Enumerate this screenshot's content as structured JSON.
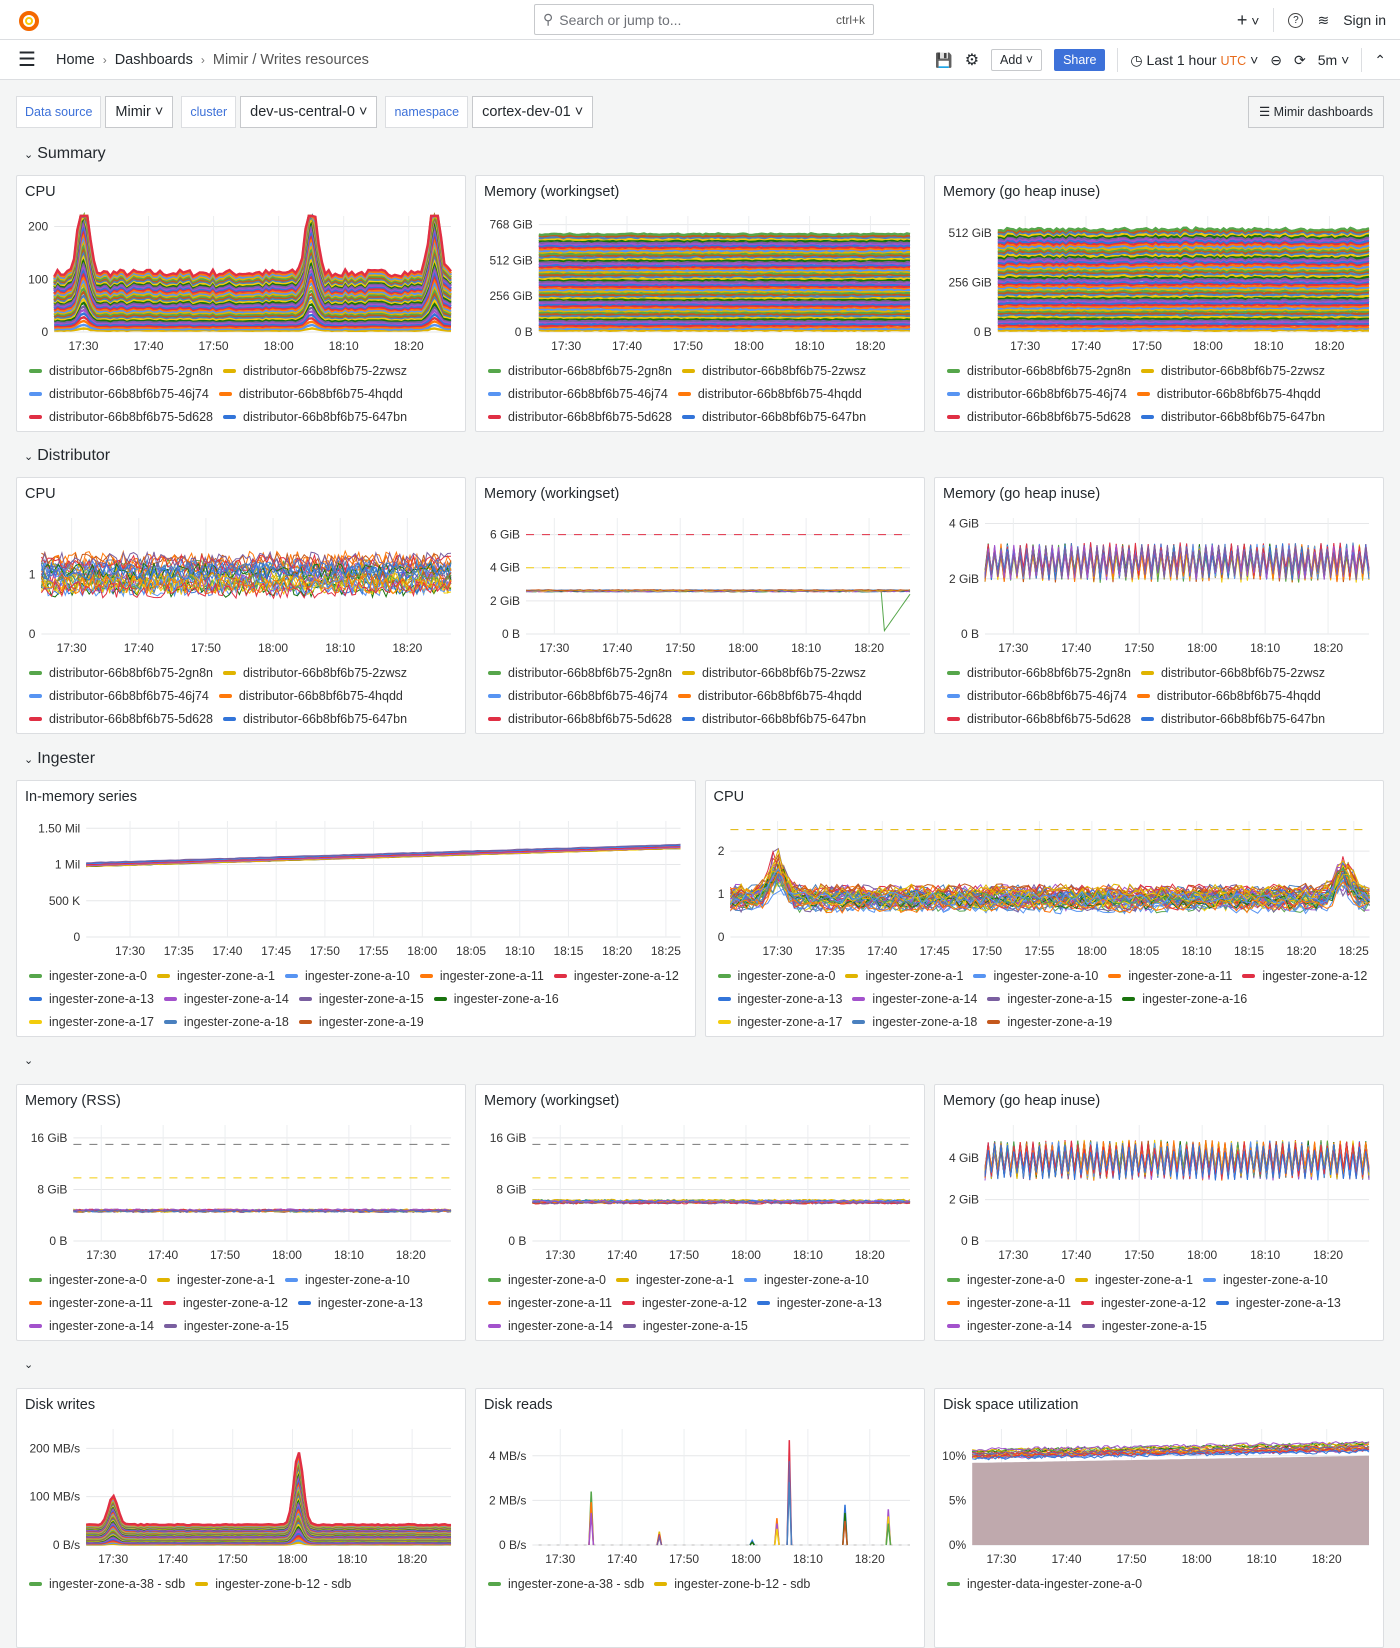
{
  "topbar": {
    "search_placeholder": "Search or jump to...",
    "shortcut": "ctrl+k",
    "new_label": "+",
    "help_icon": "help-icon",
    "news_icon": "rss-icon",
    "sign_in": "Sign in"
  },
  "breadcrumb": {
    "home": "Home",
    "dashboards": "Dashboards",
    "current": "Mimir / Writes resources"
  },
  "toolbar": {
    "add": "Add",
    "share": "Share",
    "time_range": "Last 1 hour",
    "timezone": "UTC",
    "refresh": "5m"
  },
  "variables": [
    {
      "label": "Data source",
      "value": "Mimir"
    },
    {
      "label": "cluster",
      "value": "dev-us-central-0"
    },
    {
      "label": "namespace",
      "value": "cortex-dev-01"
    }
  ],
  "mimir_dashboards": "Mimir dashboards",
  "colors": {
    "accent": "#3d71d9",
    "utc": "#e86a1a",
    "palette": [
      "#56a64b",
      "#e0b400",
      "#5794f2",
      "#ff780a",
      "#e02f44",
      "#3274d9",
      "#a352cc",
      "#7a5fa0",
      "#19730e",
      "#f2cc0c",
      "#4a80bf",
      "#c4581c"
    ]
  },
  "sections": [
    {
      "title": "Summary",
      "panels": [
        {
          "title": "CPU",
          "kind": "stacked",
          "n": 40,
          "ylim": [
            0,
            220
          ],
          "yticks": [
            {
              "v": 0,
              "l": "0"
            },
            {
              "v": 100,
              "l": "100"
            },
            {
              "v": 200,
              "l": "200"
            }
          ],
          "total": 112,
          "spikes": [
            {
              "t": "17:30",
              "v": 165
            },
            {
              "t": "18:05",
              "v": 155
            },
            {
              "t": "18:24",
              "v": 150
            }
          ],
          "legend": [
            "distributor-66b8bf6b75-2gn8n",
            "distributor-66b8bf6b75-2zwsz",
            "distributor-66b8bf6b75-46j74",
            "distributor-66b8bf6b75-4hqdd",
            "distributor-66b8bf6b75-5d628",
            "distributor-66b8bf6b75-647bn"
          ]
        },
        {
          "title": "Memory (workingset)",
          "kind": "stacked",
          "n": 60,
          "ylim": [
            0,
            830
          ],
          "yticks": [
            {
              "v": 0,
              "l": "0 B"
            },
            {
              "v": 256,
              "l": "256 GiB"
            },
            {
              "v": 512,
              "l": "512 GiB"
            },
            {
              "v": 768,
              "l": "768 GiB"
            }
          ],
          "total": 700,
          "noise": 0.01,
          "legend": [
            "distributor-66b8bf6b75-2gn8n",
            "distributor-66b8bf6b75-2zwsz",
            "distributor-66b8bf6b75-46j74",
            "distributor-66b8bf6b75-4hqdd",
            "distributor-66b8bf6b75-5d628",
            "distributor-66b8bf6b75-647bn"
          ]
        },
        {
          "title": "Memory (go heap inuse)",
          "kind": "stacked",
          "n": 60,
          "ylim": [
            0,
            600
          ],
          "yticks": [
            {
              "v": 0,
              "l": "0 B"
            },
            {
              "v": 256,
              "l": "256 GiB"
            },
            {
              "v": 512,
              "l": "512 GiB"
            }
          ],
          "total": 530,
          "noise": 0.03,
          "legend": [
            "distributor-66b8bf6b75-2gn8n",
            "distributor-66b8bf6b75-2zwsz",
            "distributor-66b8bf6b75-46j74",
            "distributor-66b8bf6b75-4hqdd",
            "distributor-66b8bf6b75-5d628",
            "distributor-66b8bf6b75-647bn"
          ]
        }
      ]
    },
    {
      "title": "Distributor",
      "panels": [
        {
          "title": "CPU",
          "kind": "lines",
          "n": 30,
          "ylim": [
            0,
            1.95
          ],
          "yticks": [
            {
              "v": 0,
              "l": "0"
            },
            {
              "v": 1,
              "l": "1"
            }
          ],
          "center": 1.0,
          "spread": 0.25,
          "noise": 0.15,
          "legend": [
            "distributor-66b8bf6b75-2gn8n",
            "distributor-66b8bf6b75-2zwsz",
            "distributor-66b8bf6b75-46j74",
            "distributor-66b8bf6b75-4hqdd",
            "distributor-66b8bf6b75-5d628",
            "distributor-66b8bf6b75-647bn"
          ]
        },
        {
          "title": "Memory (workingset)",
          "kind": "lines",
          "n": 12,
          "ylim": [
            0,
            7
          ],
          "yticks": [
            {
              "v": 0,
              "l": "0 B"
            },
            {
              "v": 2,
              "l": "2 GiB"
            },
            {
              "v": 4,
              "l": "4 GiB"
            },
            {
              "v": 6,
              "l": "6 GiB"
            }
          ],
          "center": 2.6,
          "spread": 0.05,
          "noise": 0.01,
          "thresholds": [
            {
              "v": 6,
              "color": "#e02f44"
            },
            {
              "v": 4,
              "color": "#f2cc0c"
            }
          ],
          "legend": [
            "distributor-66b8bf6b75-2gn8n",
            "distributor-66b8bf6b75-2zwsz",
            "distributor-66b8bf6b75-46j74",
            "distributor-66b8bf6b75-4hqdd",
            "distributor-66b8bf6b75-5d628",
            "distributor-66b8bf6b75-647bn"
          ]
        },
        {
          "title": "Memory (go heap inuse)",
          "kind": "osc",
          "n": 20,
          "ylim": [
            0,
            4.2
          ],
          "yticks": [
            {
              "v": 0,
              "l": "0 B"
            },
            {
              "v": 2,
              "l": "2 GiB"
            },
            {
              "v": 4,
              "l": "4 GiB"
            }
          ],
          "center": 2.6,
          "spread": 0.1,
          "noise": 0.65,
          "legend": [
            "distributor-66b8bf6b75-2gn8n",
            "distributor-66b8bf6b75-2zwsz",
            "distributor-66b8bf6b75-46j74",
            "distributor-66b8bf6b75-4hqdd",
            "distributor-66b8bf6b75-5d628",
            "distributor-66b8bf6b75-647bn"
          ]
        }
      ]
    },
    {
      "title": "Ingester",
      "wide": true,
      "panels": [
        {
          "title": "In-memory series",
          "kind": "rising",
          "n": 20,
          "ylim": [
            0,
            1.6
          ],
          "yticks": [
            {
              "v": 0,
              "l": "0"
            },
            {
              "v": 0.5,
              "l": "500 K"
            },
            {
              "v": 1,
              "l": "1 Mil"
            },
            {
              "v": 1.5,
              "l": "1.50 Mil"
            }
          ],
          "center": 1.0,
          "end": 1.25,
          "spread": 0.03,
          "noise": 0.003,
          "legend": [
            "ingester-zone-a-0",
            "ingester-zone-a-1",
            "ingester-zone-a-10",
            "ingester-zone-a-11",
            "ingester-zone-a-12",
            "ingester-zone-a-13",
            "ingester-zone-a-14",
            "ingester-zone-a-15",
            "ingester-zone-a-16",
            "ingester-zone-a-17",
            "ingester-zone-a-18",
            "ingester-zone-a-19"
          ]
        },
        {
          "title": "CPU",
          "kind": "lines",
          "n": 40,
          "ylim": [
            0,
            2.7
          ],
          "yticks": [
            {
              "v": 0,
              "l": "0"
            },
            {
              "v": 1,
              "l": "1"
            },
            {
              "v": 2,
              "l": "2"
            }
          ],
          "center": 0.9,
          "spread": 0.2,
          "noise": 0.18,
          "thresholds": [
            {
              "v": 2.5,
              "color": "#e0b400"
            }
          ],
          "spikes": [
            {
              "t": "17:30",
              "v": 0.9
            },
            {
              "t": "18:24",
              "v": 0.8
            }
          ],
          "legend": [
            "ingester-zone-a-0",
            "ingester-zone-a-1",
            "ingester-zone-a-10",
            "ingester-zone-a-11",
            "ingester-zone-a-12",
            "ingester-zone-a-13",
            "ingester-zone-a-14",
            "ingester-zone-a-15",
            "ingester-zone-a-16",
            "ingester-zone-a-17",
            "ingester-zone-a-18",
            "ingester-zone-a-19"
          ]
        }
      ]
    },
    {
      "title": "",
      "panels": [
        {
          "title": "Memory (RSS)",
          "kind": "lines",
          "n": 20,
          "ylim": [
            0,
            18
          ],
          "yticks": [
            {
              "v": 0,
              "l": "0 B"
            },
            {
              "v": 8,
              "l": "8 GiB"
            },
            {
              "v": 16,
              "l": "16 GiB"
            }
          ],
          "center": 4.7,
          "spread": 0.15,
          "noise": 0.03,
          "thresholds": [
            {
              "v": 15,
              "color": "#777777"
            },
            {
              "v": 9.8,
              "color": "#f2cc0c"
            }
          ],
          "legend": [
            "ingester-zone-a-0",
            "ingester-zone-a-1",
            "ingester-zone-a-10",
            "ingester-zone-a-11",
            "ingester-zone-a-12",
            "ingester-zone-a-13",
            "ingester-zone-a-14",
            "ingester-zone-a-15"
          ]
        },
        {
          "title": "Memory (workingset)",
          "kind": "lines",
          "n": 20,
          "ylim": [
            0,
            18
          ],
          "yticks": [
            {
              "v": 0,
              "l": "0 B"
            },
            {
              "v": 8,
              "l": "8 GiB"
            },
            {
              "v": 16,
              "l": "16 GiB"
            }
          ],
          "center": 6.1,
          "spread": 0.2,
          "noise": 0.03,
          "thresholds": [
            {
              "v": 15,
              "color": "#777777"
            },
            {
              "v": 9.8,
              "color": "#f2cc0c"
            }
          ],
          "legend": [
            "ingester-zone-a-0",
            "ingester-zone-a-1",
            "ingester-zone-a-10",
            "ingester-zone-a-11",
            "ingester-zone-a-12",
            "ingester-zone-a-13",
            "ingester-zone-a-14",
            "ingester-zone-a-15"
          ]
        },
        {
          "title": "Memory (go heap inuse)",
          "kind": "osc",
          "n": 30,
          "ylim": [
            0,
            5.6
          ],
          "yticks": [
            {
              "v": 0,
              "l": "0 B"
            },
            {
              "v": 2,
              "l": "2 GiB"
            },
            {
              "v": 4,
              "l": "4 GiB"
            }
          ],
          "center": 3.9,
          "spread": 0.1,
          "noise": 0.9,
          "legend": [
            "ingester-zone-a-0",
            "ingester-zone-a-1",
            "ingester-zone-a-10",
            "ingester-zone-a-11",
            "ingester-zone-a-12",
            "ingester-zone-a-13",
            "ingester-zone-a-14",
            "ingester-zone-a-15"
          ]
        }
      ]
    },
    {
      "title": "",
      "panels": [
        {
          "title": "Disk writes",
          "kind": "stacked",
          "n": 40,
          "ylim": [
            0,
            240
          ],
          "yticks": [
            {
              "v": 0,
              "l": "0 B/s"
            },
            {
              "v": 100,
              "l": "100 MB/s"
            },
            {
              "v": 200,
              "l": "200 MB/s"
            }
          ],
          "total": 42,
          "noise": 0.06,
          "spikes": [
            {
              "t": "17:30",
              "v": 60
            },
            {
              "t": "18:01",
              "v": 150
            }
          ],
          "legend": [
            "ingester-zone-a-38 - sdb",
            "ingester-zone-b-12 - sdb"
          ]
        },
        {
          "title": "Disk reads",
          "kind": "spikes",
          "n": 8,
          "ylim": [
            0,
            5.2
          ],
          "yticks": [
            {
              "v": 0,
              "l": "0 B/s"
            },
            {
              "v": 2,
              "l": "2 MB/s"
            },
            {
              "v": 4,
              "l": "4 MB/s"
            }
          ],
          "spikes": [
            {
              "t": "17:35",
              "v": 2.4
            },
            {
              "t": "17:46",
              "v": 0.6
            },
            {
              "t": "18:01",
              "v": 0.2
            },
            {
              "t": "18:05",
              "v": 1.2
            },
            {
              "t": "18:07",
              "v": 4.7
            },
            {
              "t": "18:16",
              "v": 1.8
            },
            {
              "t": "18:23",
              "v": 1.6
            }
          ],
          "legend": [
            "ingester-zone-a-38 - sdb",
            "ingester-zone-b-12 - sdb"
          ]
        },
        {
          "title": "Disk space utilization",
          "kind": "area",
          "n": 20,
          "ylim": [
            0,
            13
          ],
          "yticks": [
            {
              "v": 0,
              "l": "0%"
            },
            {
              "v": 5,
              "l": "5%"
            },
            {
              "v": 10,
              "l": "10%"
            }
          ],
          "center": 10.2,
          "end": 11,
          "spread": 0.5,
          "noise": 0.02,
          "fill": "#bfa9ad",
          "legend": [
            "ingester-data-ingester-zone-a-0"
          ]
        }
      ]
    }
  ],
  "x_range_3col": [
    "17:25.5",
    "18:26.5"
  ],
  "x_ticks_3col": [
    "17:30",
    "17:40",
    "17:50",
    "18:00",
    "18:10",
    "18:20"
  ],
  "x_ticks_wide": [
    "17:30",
    "17:35",
    "17:40",
    "17:45",
    "17:50",
    "17:55",
    "18:00",
    "18:05",
    "18:10",
    "18:15",
    "18:20",
    "18:25"
  ]
}
